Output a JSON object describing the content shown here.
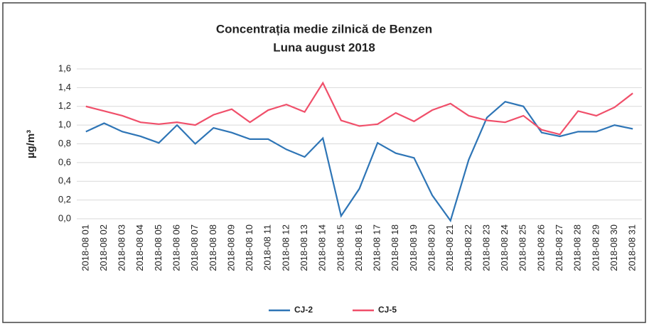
{
  "chart_data": {
    "type": "line",
    "title": "Concentrația medie zilnică de Benzen",
    "subtitle": "Luna august 2018",
    "y_label": "µg/m³",
    "categories": [
      "2018-08 01",
      "2018-08 02",
      "2018-08 03",
      "2018-08 04",
      "2018-08 05",
      "2018-08 06",
      "2018-08 07",
      "2018-08 08",
      "2018-08 09",
      "2018-08 10",
      "2018-08 11",
      "2018-08 12",
      "2018-08 13",
      "2018-08 14",
      "2018-08 15",
      "2018-08 16",
      "2018-08 17",
      "2018-08 18",
      "2018-08 19",
      "2018-08 20",
      "2018-08 21",
      "2018-08 22",
      "2018-08 23",
      "2018-08 24",
      "2018-08 25",
      "2018-08 26",
      "2018-08 27",
      "2018-08 28",
      "2018-08 29",
      "2018-08 30",
      "2018-08 31"
    ],
    "series": [
      {
        "name": "CJ-2",
        "color": "#2e75b6",
        "values": [
          0.93,
          1.02,
          0.93,
          0.88,
          0.81,
          1.0,
          0.8,
          0.97,
          0.92,
          0.85,
          0.85,
          0.74,
          0.66,
          0.86,
          0.03,
          0.32,
          0.81,
          0.7,
          0.65,
          0.25,
          -0.02,
          0.63,
          1.08,
          1.25,
          1.2,
          0.92,
          0.88,
          0.93,
          0.93,
          1.0,
          0.96
        ]
      },
      {
        "name": "CJ-5",
        "color": "#f04f6a",
        "values": [
          1.2,
          1.15,
          1.1,
          1.03,
          1.01,
          1.03,
          1.0,
          1.11,
          1.17,
          1.03,
          1.16,
          1.22,
          1.14,
          1.45,
          1.05,
          0.99,
          1.01,
          1.13,
          1.04,
          1.16,
          1.23,
          1.1,
          1.05,
          1.03,
          1.1,
          0.95,
          0.9,
          1.15,
          1.1,
          1.19,
          1.34
        ]
      }
    ],
    "ylim": [
      0,
      1.6
    ],
    "yticks": [
      {
        "value": 0,
        "label": "0,0"
      },
      {
        "value": 0.2,
        "label": "0,2"
      },
      {
        "value": 0.4,
        "label": "0,4"
      },
      {
        "value": 0.6,
        "label": "0,6"
      },
      {
        "value": 0.8,
        "label": "0,8"
      },
      {
        "value": 1.0,
        "label": "1,0"
      },
      {
        "value": 1.2,
        "label": "1,2"
      },
      {
        "value": 1.4,
        "label": "1,4"
      },
      {
        "value": 1.6,
        "label": "1,6"
      }
    ],
    "grid": true,
    "legend": "bottom"
  }
}
